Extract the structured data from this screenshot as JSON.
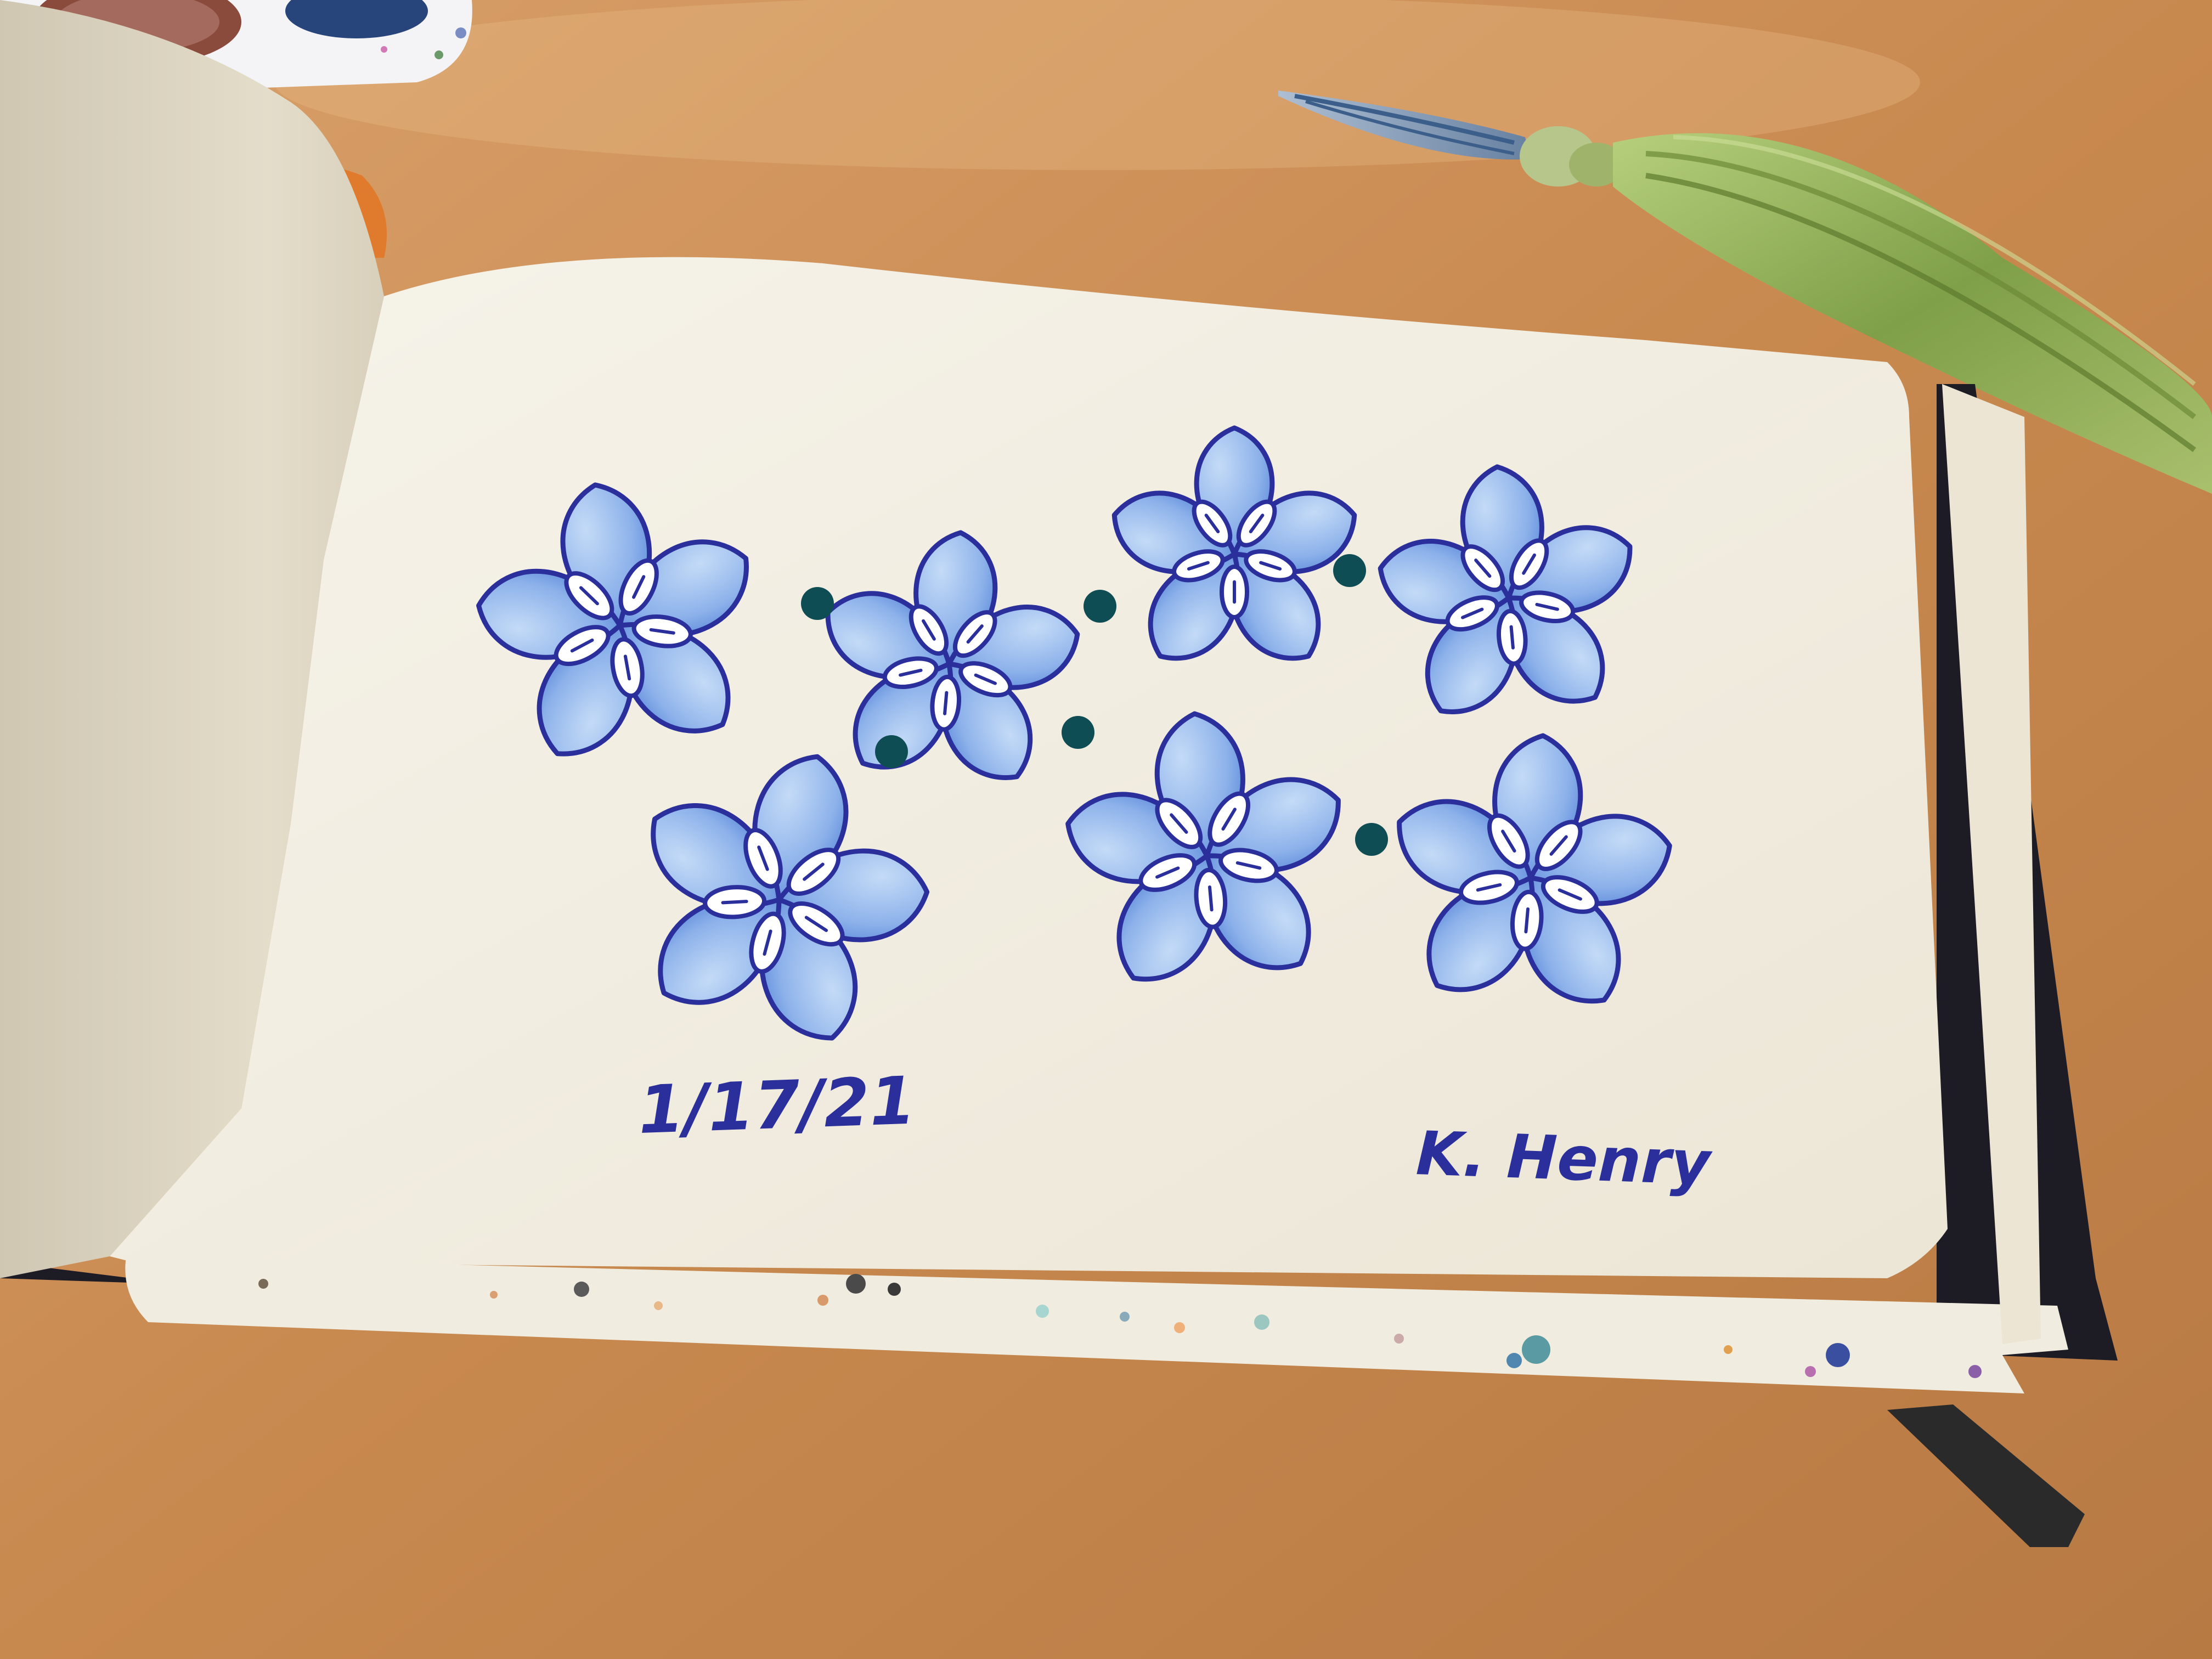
{
  "sketchbook": {
    "date": "1/17/21",
    "signature": "K. Henry"
  },
  "colors": {
    "table": "#c8894f",
    "paper": "#f3efe4",
    "ink_blue": "#2a2f9c",
    "petal_light": "#a9c8f0",
    "petal_mid": "#6d98e0",
    "dot_teal": "#0f4d55",
    "pen_green": "#8fae5a",
    "pen_blue": "#6e8fb8",
    "ribbon_orange": "#e07a2c"
  },
  "artwork": {
    "flower_count": 7,
    "dot_count": 6
  }
}
